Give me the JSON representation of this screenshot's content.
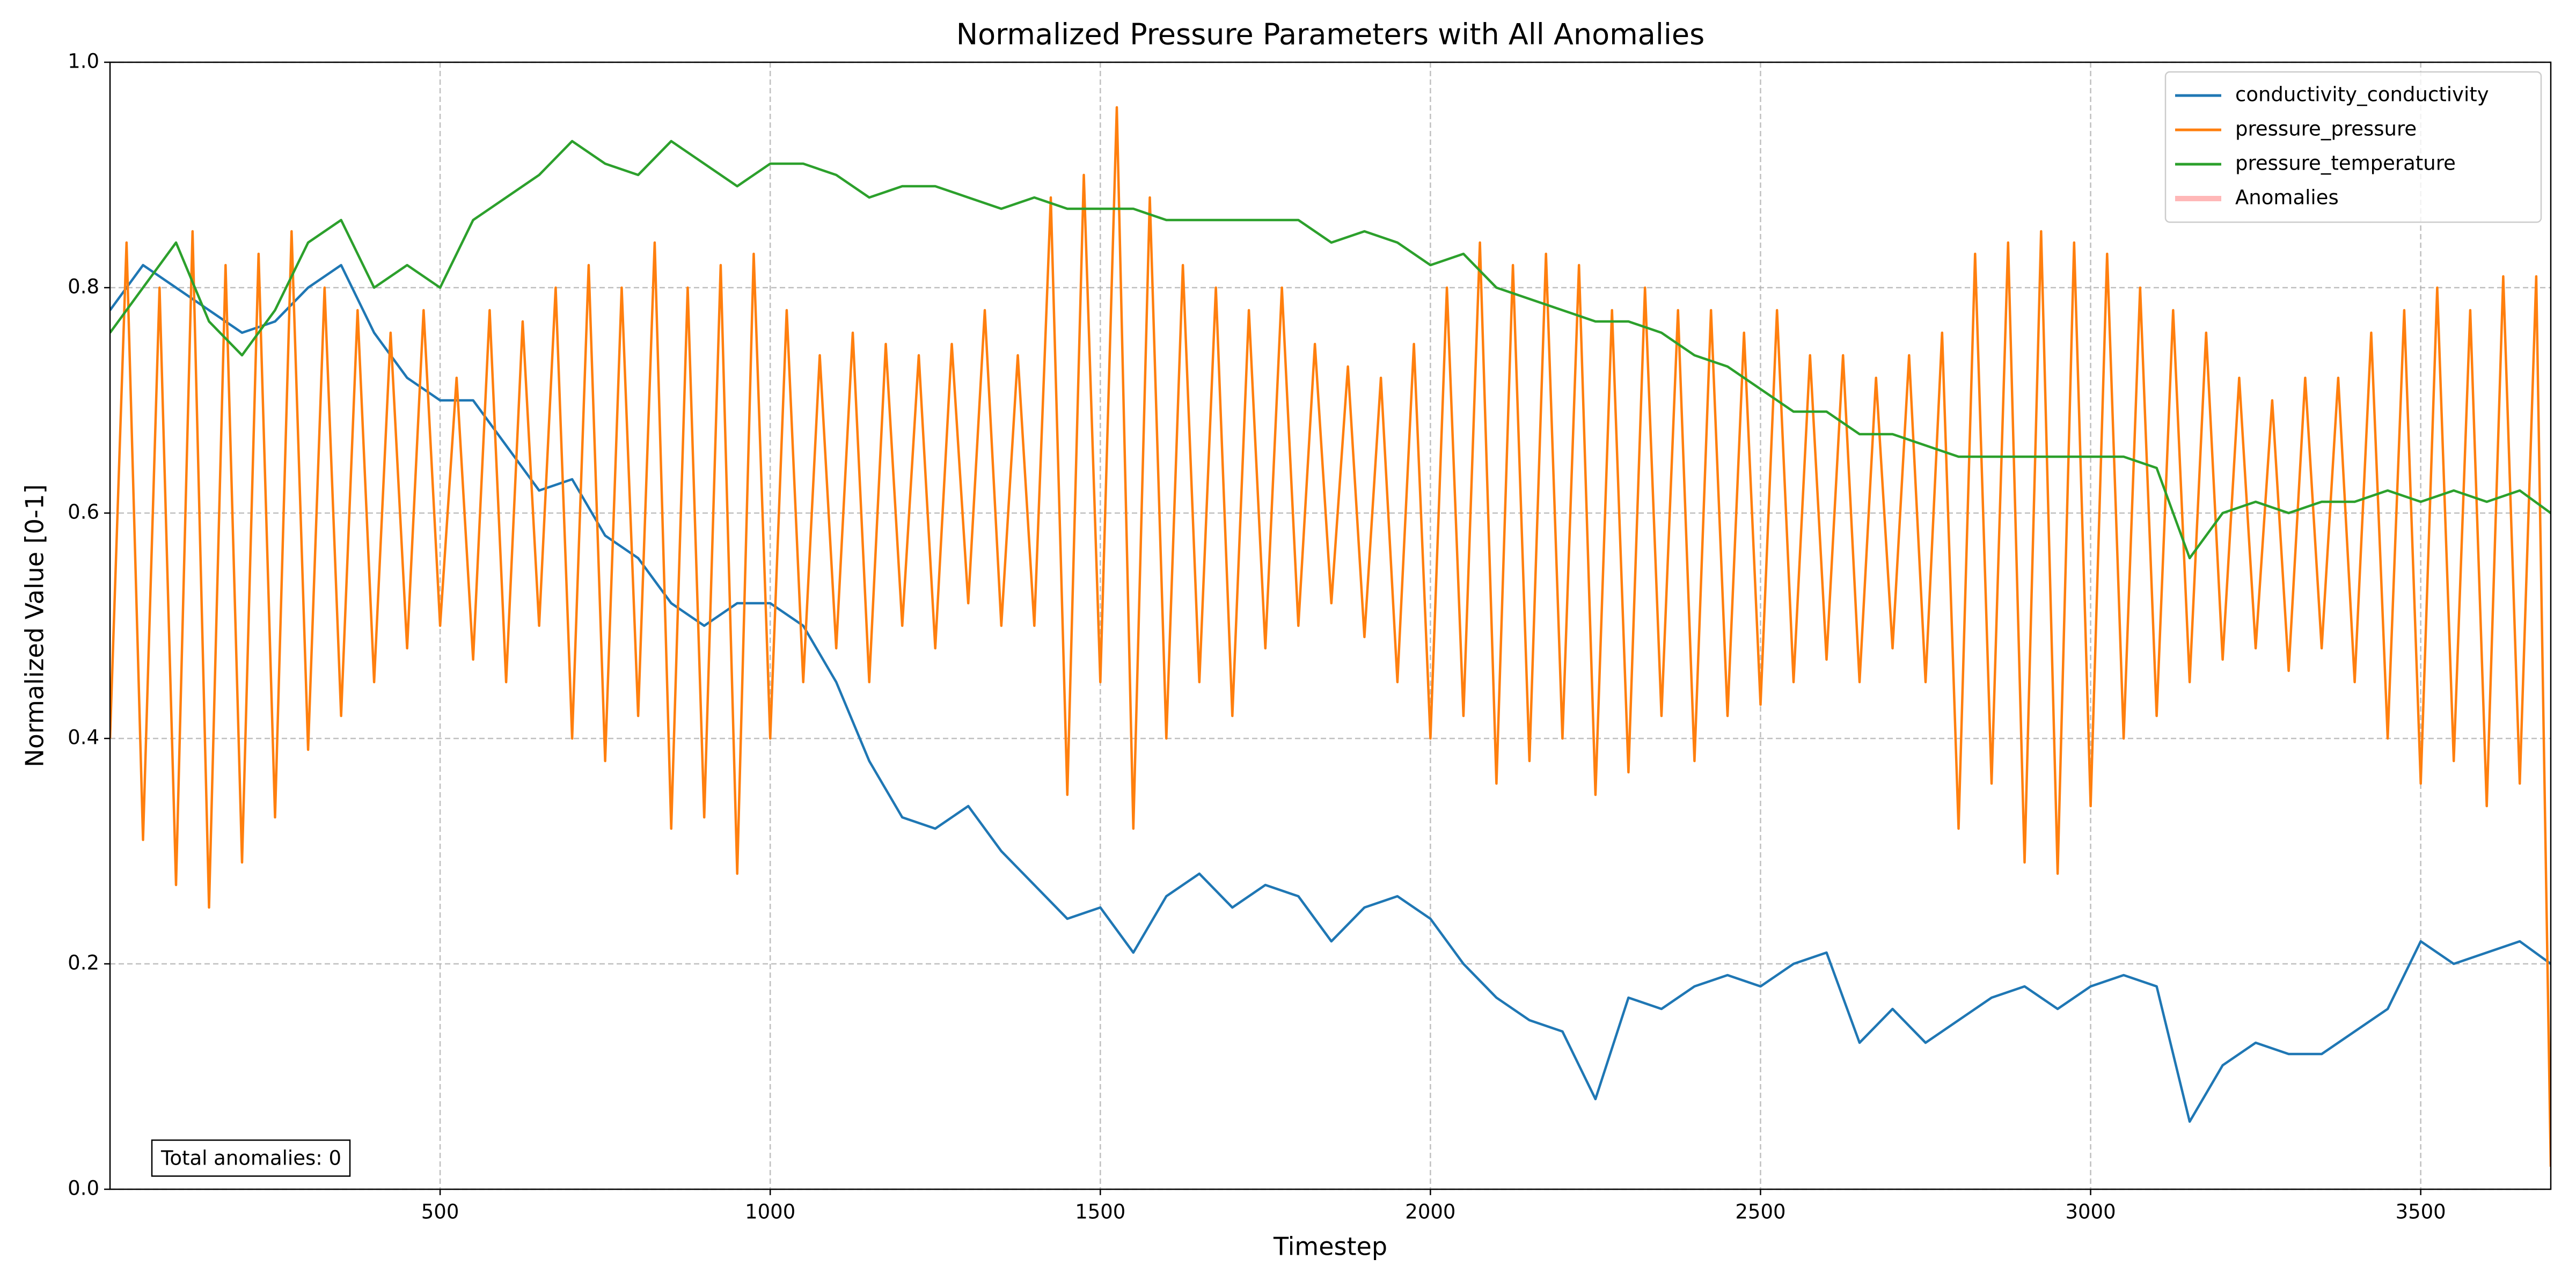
{
  "chart_data": {
    "type": "line",
    "title": "Normalized Pressure Parameters with All Anomalies",
    "x_label": "Timestep",
    "y_label": "Normalized Value [0-1]",
    "annotation": "Total anomalies: 0",
    "xlim": [
      0,
      3697
    ],
    "ylim": [
      0,
      1
    ],
    "xticks": [
      500,
      1000,
      1500,
      2000,
      2500,
      3000,
      3500
    ],
    "yticks": [
      {
        "value": 0,
        "label": "0.0"
      },
      {
        "value": 0.2,
        "label": "0.2"
      },
      {
        "value": 0.4,
        "label": "0.4"
      },
      {
        "value": 0.6,
        "label": "0.6"
      },
      {
        "value": 0.8,
        "label": "0.8"
      },
      {
        "value": 1,
        "label": "1.0"
      }
    ],
    "grid": true,
    "legend": "upper right",
    "series": [
      {
        "name": "conductivity_conductivity",
        "color": "#1f77b4",
        "x": [
          0,
          50,
          100,
          150,
          200,
          250,
          300,
          350,
          400,
          450,
          500,
          550,
          600,
          650,
          700,
          750,
          800,
          850,
          900,
          950,
          1000,
          1050,
          1100,
          1150,
          1200,
          1250,
          1300,
          1350,
          1400,
          1450,
          1500,
          1550,
          1600,
          1650,
          1700,
          1750,
          1800,
          1850,
          1900,
          1950,
          2000,
          2050,
          2100,
          2150,
          2200,
          2250,
          2300,
          2350,
          2400,
          2450,
          2500,
          2550,
          2600,
          2650,
          2700,
          2750,
          2800,
          2850,
          2900,
          2950,
          3000,
          3050,
          3100,
          3150,
          3200,
          3250,
          3300,
          3350,
          3400,
          3450,
          3500,
          3550,
          3600,
          3650,
          3697
        ],
        "values": [
          0.78,
          0.82,
          0.8,
          0.78,
          0.76,
          0.77,
          0.8,
          0.82,
          0.76,
          0.72,
          0.7,
          0.7,
          0.66,
          0.62,
          0.63,
          0.58,
          0.56,
          0.52,
          0.5,
          0.52,
          0.52,
          0.5,
          0.45,
          0.38,
          0.33,
          0.32,
          0.34,
          0.3,
          0.27,
          0.24,
          0.25,
          0.21,
          0.26,
          0.28,
          0.25,
          0.27,
          0.26,
          0.22,
          0.25,
          0.26,
          0.24,
          0.2,
          0.17,
          0.15,
          0.14,
          0.08,
          0.17,
          0.16,
          0.18,
          0.19,
          0.18,
          0.2,
          0.21,
          0.13,
          0.16,
          0.13,
          0.15,
          0.17,
          0.18,
          0.16,
          0.18,
          0.19,
          0.18,
          0.06,
          0.11,
          0.13,
          0.12,
          0.12,
          0.14,
          0.16,
          0.22,
          0.2,
          0.21,
          0.22,
          0.2
        ]
      },
      {
        "name": "pressure_pressure",
        "color": "#ff7f0e",
        "x": [
          0,
          25,
          50,
          75,
          100,
          125,
          150,
          175,
          200,
          225,
          250,
          275,
          300,
          325,
          350,
          375,
          400,
          425,
          450,
          475,
          500,
          525,
          550,
          575,
          600,
          625,
          650,
          675,
          700,
          725,
          750,
          775,
          800,
          825,
          850,
          875,
          900,
          925,
          950,
          975,
          1000,
          1025,
          1050,
          1075,
          1100,
          1125,
          1150,
          1175,
          1200,
          1225,
          1250,
          1275,
          1300,
          1325,
          1350,
          1375,
          1400,
          1425,
          1450,
          1475,
          1500,
          1525,
          1550,
          1575,
          1600,
          1625,
          1650,
          1675,
          1700,
          1725,
          1750,
          1775,
          1800,
          1825,
          1850,
          1875,
          1900,
          1925,
          1950,
          1975,
          2000,
          2025,
          2050,
          2075,
          2100,
          2125,
          2150,
          2175,
          2200,
          2225,
          2250,
          2275,
          2300,
          2325,
          2350,
          2375,
          2400,
          2425,
          2450,
          2475,
          2500,
          2525,
          2550,
          2575,
          2600,
          2625,
          2650,
          2675,
          2700,
          2725,
          2750,
          2775,
          2800,
          2825,
          2850,
          2875,
          2900,
          2925,
          2950,
          2975,
          3000,
          3025,
          3050,
          3075,
          3100,
          3125,
          3150,
          3175,
          3200,
          3225,
          3250,
          3275,
          3300,
          3325,
          3350,
          3375,
          3400,
          3425,
          3450,
          3475,
          3500,
          3525,
          3550,
          3575,
          3600,
          3625,
          3650,
          3675,
          3697
        ],
        "values": [
          0.4,
          0.84,
          0.31,
          0.8,
          0.27,
          0.85,
          0.25,
          0.82,
          0.29,
          0.83,
          0.33,
          0.85,
          0.39,
          0.8,
          0.42,
          0.78,
          0.45,
          0.76,
          0.48,
          0.78,
          0.5,
          0.72,
          0.47,
          0.78,
          0.45,
          0.77,
          0.5,
          0.8,
          0.4,
          0.82,
          0.38,
          0.8,
          0.42,
          0.84,
          0.32,
          0.8,
          0.33,
          0.82,
          0.28,
          0.83,
          0.4,
          0.78,
          0.45,
          0.74,
          0.48,
          0.76,
          0.45,
          0.75,
          0.5,
          0.74,
          0.48,
          0.75,
          0.52,
          0.78,
          0.5,
          0.74,
          0.5,
          0.88,
          0.35,
          0.9,
          0.45,
          0.96,
          0.32,
          0.88,
          0.4,
          0.82,
          0.45,
          0.8,
          0.42,
          0.78,
          0.48,
          0.8,
          0.5,
          0.75,
          0.52,
          0.73,
          0.49,
          0.72,
          0.45,
          0.75,
          0.4,
          0.8,
          0.42,
          0.84,
          0.36,
          0.82,
          0.38,
          0.83,
          0.4,
          0.82,
          0.35,
          0.78,
          0.37,
          0.8,
          0.42,
          0.78,
          0.38,
          0.78,
          0.42,
          0.76,
          0.43,
          0.78,
          0.45,
          0.74,
          0.47,
          0.74,
          0.45,
          0.72,
          0.48,
          0.74,
          0.45,
          0.76,
          0.32,
          0.83,
          0.36,
          0.84,
          0.29,
          0.85,
          0.28,
          0.84,
          0.34,
          0.83,
          0.4,
          0.8,
          0.42,
          0.78,
          0.45,
          0.76,
          0.47,
          0.72,
          0.48,
          0.7,
          0.46,
          0.72,
          0.48,
          0.72,
          0.45,
          0.76,
          0.4,
          0.78,
          0.36,
          0.8,
          0.38,
          0.78,
          0.34,
          0.81,
          0.36,
          0.81,
          0.02
        ]
      },
      {
        "name": "pressure_temperature",
        "color": "#2ca02c",
        "x": [
          0,
          50,
          100,
          150,
          200,
          250,
          300,
          350,
          400,
          450,
          500,
          550,
          600,
          650,
          700,
          750,
          800,
          850,
          900,
          950,
          1000,
          1050,
          1100,
          1150,
          1200,
          1250,
          1300,
          1350,
          1400,
          1450,
          1500,
          1550,
          1600,
          1650,
          1700,
          1750,
          1800,
          1850,
          1900,
          1950,
          2000,
          2050,
          2100,
          2150,
          2200,
          2250,
          2300,
          2350,
          2400,
          2450,
          2500,
          2550,
          2600,
          2650,
          2700,
          2750,
          2800,
          2850,
          2900,
          2950,
          3000,
          3050,
          3100,
          3150,
          3200,
          3250,
          3300,
          3350,
          3400,
          3450,
          3500,
          3550,
          3600,
          3650,
          3697
        ],
        "values": [
          0.76,
          0.8,
          0.84,
          0.77,
          0.74,
          0.78,
          0.84,
          0.86,
          0.8,
          0.82,
          0.8,
          0.86,
          0.88,
          0.9,
          0.93,
          0.91,
          0.9,
          0.93,
          0.91,
          0.89,
          0.91,
          0.91,
          0.9,
          0.88,
          0.89,
          0.89,
          0.88,
          0.87,
          0.88,
          0.87,
          0.87,
          0.87,
          0.86,
          0.86,
          0.86,
          0.86,
          0.86,
          0.84,
          0.85,
          0.84,
          0.82,
          0.83,
          0.8,
          0.79,
          0.78,
          0.77,
          0.77,
          0.76,
          0.74,
          0.73,
          0.71,
          0.69,
          0.69,
          0.67,
          0.67,
          0.66,
          0.65,
          0.65,
          0.65,
          0.65,
          0.65,
          0.65,
          0.64,
          0.56,
          0.6,
          0.61,
          0.6,
          0.61,
          0.61,
          0.62,
          0.61,
          0.62,
          0.61,
          0.62,
          0.6
        ]
      },
      {
        "name": "Anomalies",
        "color": "#ff9999",
        "values": []
      }
    ]
  }
}
